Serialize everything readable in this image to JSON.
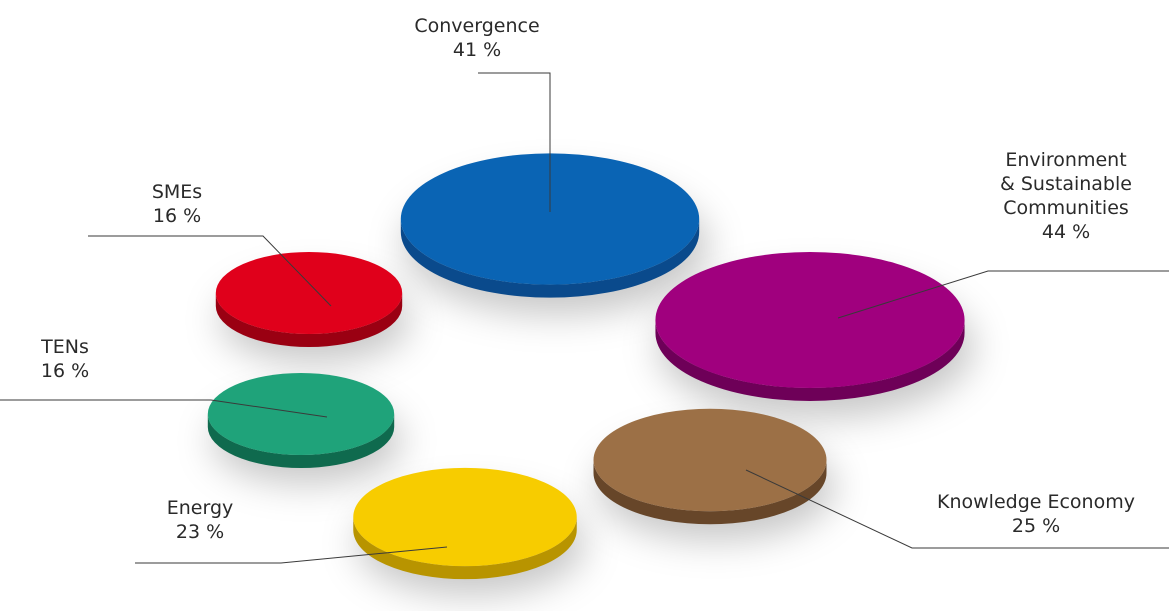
{
  "chart_data": {
    "type": "bubble",
    "title": "",
    "series": [
      {
        "name": "Convergence",
        "lines": [
          "Convergence"
        ],
        "value": 41,
        "value_label": "41 %",
        "color": "#0a64b4",
        "side": "#0a4a8c"
      },
      {
        "name": "Environment & Sustainable Communities",
        "lines": [
          "Environment",
          "& Sustainable",
          "Communities"
        ],
        "value": 44,
        "value_label": "44 %",
        "color": "#a0007e",
        "side": "#6e0058"
      },
      {
        "name": "SMEs",
        "lines": [
          "SMEs"
        ],
        "value": 16,
        "value_label": "16 %",
        "color": "#e0001b",
        "side": "#9a0012"
      },
      {
        "name": "TENs",
        "lines": [
          "TENs"
        ],
        "value": 16,
        "value_label": "16 %",
        "color": "#1fa37a",
        "side": "#0f6a4e"
      },
      {
        "name": "Energy",
        "lines": [
          "Energy"
        ],
        "value": 23,
        "value_label": "23 %",
        "color": "#f7cc00",
        "side": "#b89400"
      },
      {
        "name": "Knowledge Economy",
        "lines": [
          "Knowledge Economy"
        ],
        "value": 25,
        "value_label": "25 %",
        "color": "#9c7046",
        "side": "#674629"
      }
    ]
  }
}
